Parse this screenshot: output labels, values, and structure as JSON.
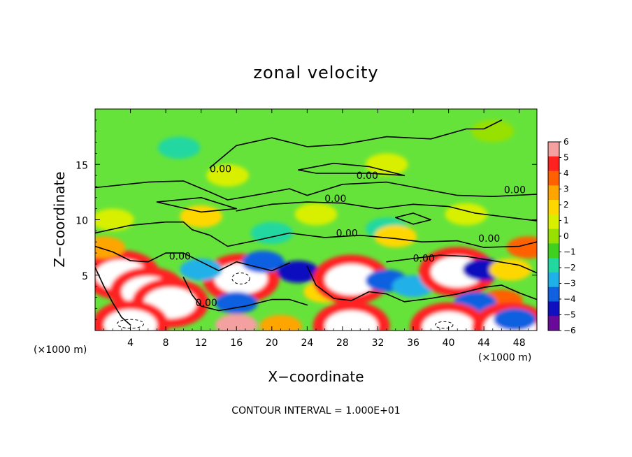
{
  "chart_data": {
    "type": "heatmap",
    "title": "zonal velocity",
    "xlabel": "X−coordinate",
    "ylabel": "Z−coordinate",
    "x_unit_left": "(×1000 m)",
    "x_unit_right": "(×1000 m)",
    "xlim": [
      0,
      50
    ],
    "ylim": [
      0,
      20
    ],
    "x_ticks": [
      4,
      8,
      12,
      16,
      20,
      24,
      28,
      32,
      36,
      40,
      44,
      48
    ],
    "y_ticks": [
      5,
      10,
      15
    ],
    "colorbar": {
      "range": [
        -6,
        6
      ],
      "ticks": [
        "6",
        "5",
        "4",
        "3",
        "2",
        "1",
        "0",
        "−1",
        "−2",
        "−3",
        "−4",
        "−5",
        "−6"
      ],
      "colors": [
        "#f4a0a0",
        "#ff2020",
        "#ff6000",
        "#ffa500",
        "#ffd700",
        "#d8f000",
        "#98e000",
        "#40d020",
        "#20d8a0",
        "#20b0e8",
        "#1060e0",
        "#1010c0",
        "#6a0a9a"
      ]
    },
    "contour_level_label": "0.00",
    "contour_interval_text": "CONTOUR INTERVAL = 1.000E+01",
    "features": [
      {
        "x": 9.5,
        "z": 16.5,
        "value": -2
      },
      {
        "x": 15,
        "z": 14,
        "value": 1
      },
      {
        "x": 33,
        "z": 15,
        "value": 1
      },
      {
        "x": 45,
        "z": 18,
        "value": 0
      },
      {
        "x": 2,
        "z": 10,
        "value": 1.5
      },
      {
        "x": 12,
        "z": 10.3,
        "value": 2
      },
      {
        "x": 25,
        "z": 10.5,
        "value": 1
      },
      {
        "x": 42,
        "z": 10.5,
        "value": 1.5
      },
      {
        "x": 20,
        "z": 8.8,
        "value": -2
      },
      {
        "x": 33,
        "z": 9.2,
        "value": -1.5
      },
      {
        "x": 3,
        "z": 5,
        "value": 9
      },
      {
        "x": 6,
        "z": 3.5,
        "value": 8
      },
      {
        "x": 8.5,
        "z": 2.5,
        "value": 7
      },
      {
        "x": 16.5,
        "z": 4.7,
        "value": 9
      },
      {
        "x": 16,
        "z": 2.5,
        "value": -4
      },
      {
        "x": 12,
        "z": 5.5,
        "value": -3
      },
      {
        "x": 19,
        "z": 6.2,
        "value": -4
      },
      {
        "x": 23,
        "z": 5.3,
        "value": -5
      },
      {
        "x": 26,
        "z": 3.5,
        "value": 2
      },
      {
        "x": 29,
        "z": 4.6,
        "value": 9
      },
      {
        "x": 33,
        "z": 4.5,
        "value": -4
      },
      {
        "x": 36,
        "z": 4,
        "value": -3
      },
      {
        "x": 41,
        "z": 5.3,
        "value": 9
      },
      {
        "x": 44,
        "z": 5.5,
        "value": -5
      },
      {
        "x": 47,
        "z": 5.5,
        "value": 2
      },
      {
        "x": 46,
        "z": 2.7,
        "value": 4
      },
      {
        "x": 43,
        "z": 2.5,
        "value": -4
      },
      {
        "x": 4,
        "z": 0.5,
        "value": 9
      },
      {
        "x": 16,
        "z": 0.5,
        "value": 6
      },
      {
        "x": 21,
        "z": 0.4,
        "value": 3
      },
      {
        "x": 29,
        "z": 0.4,
        "value": 9
      },
      {
        "x": 39,
        "z": 0.6,
        "value": 5
      },
      {
        "x": 40,
        "z": 0.3,
        "value": 9
      },
      {
        "x": 47,
        "z": 0.3,
        "value": 9
      },
      {
        "x": 47.5,
        "z": 1,
        "value": -4
      },
      {
        "x": 1,
        "z": 7.5,
        "value": 3
      },
      {
        "x": 34,
        "z": 8.5,
        "value": 2.5
      },
      {
        "x": 49,
        "z": 7.5,
        "value": 4
      }
    ]
  }
}
